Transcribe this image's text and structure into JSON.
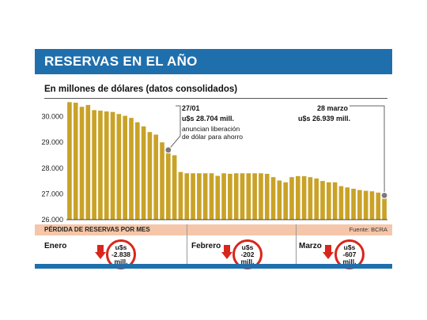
{
  "title": "RESERVAS EN EL AÑO",
  "subtitle": "En millones de dólares (datos consolidados)",
  "loss_section": {
    "label": "PÉRDIDA DE RESERVAS POR MES",
    "source": "Fuente: BCRA",
    "months": [
      {
        "month": "Enero",
        "line1": "u$s",
        "line2": "-2.838",
        "line3": "mill."
      },
      {
        "month": "Febrero",
        "line1": "u$s",
        "line2": "-202",
        "line3": "mill."
      },
      {
        "month": "Marzo",
        "line1": "u$s",
        "line2": "-607",
        "line3": "mill."
      }
    ]
  },
  "annotations": {
    "first": {
      "date": "27/01",
      "value": "u$s 28.704 mill.",
      "note1": "anuncian liberación",
      "note2": "de dólar para ahorro"
    },
    "second": {
      "date": "28 marzo",
      "value": "u$s 26.939 mill."
    }
  },
  "colors": {
    "bar": "#c9a227",
    "title_bar": "#1f6fad",
    "loss_bar": "#f5c6a9",
    "badge_border": "#d9261c",
    "marker": "#7a7a7a"
  },
  "chart_data": {
    "type": "bar",
    "ylim": [
      26000,
      30600
    ],
    "yticks": [
      "30.000",
      "29.000",
      "28.000",
      "27.000",
      "26.000"
    ],
    "ytick_values": [
      30000,
      29000,
      28000,
      27000,
      26000
    ],
    "grid": false,
    "values": [
      30560,
      30540,
      30380,
      30450,
      30250,
      30230,
      30200,
      30180,
      30100,
      30030,
      29950,
      29780,
      29620,
      29400,
      29300,
      29000,
      28704,
      28500,
      27850,
      27800,
      27800,
      27800,
      27800,
      27800,
      27700,
      27800,
      27780,
      27800,
      27800,
      27800,
      27800,
      27800,
      27780,
      27650,
      27520,
      27450,
      27650,
      27690,
      27690,
      27650,
      27600,
      27500,
      27450,
      27450,
      27300,
      27250,
      27200,
      27150,
      27120,
      27100,
      27050,
      26939
    ],
    "markers": [
      {
        "index": 16,
        "value": 28704
      },
      {
        "index": 51,
        "value": 26939
      }
    ]
  }
}
